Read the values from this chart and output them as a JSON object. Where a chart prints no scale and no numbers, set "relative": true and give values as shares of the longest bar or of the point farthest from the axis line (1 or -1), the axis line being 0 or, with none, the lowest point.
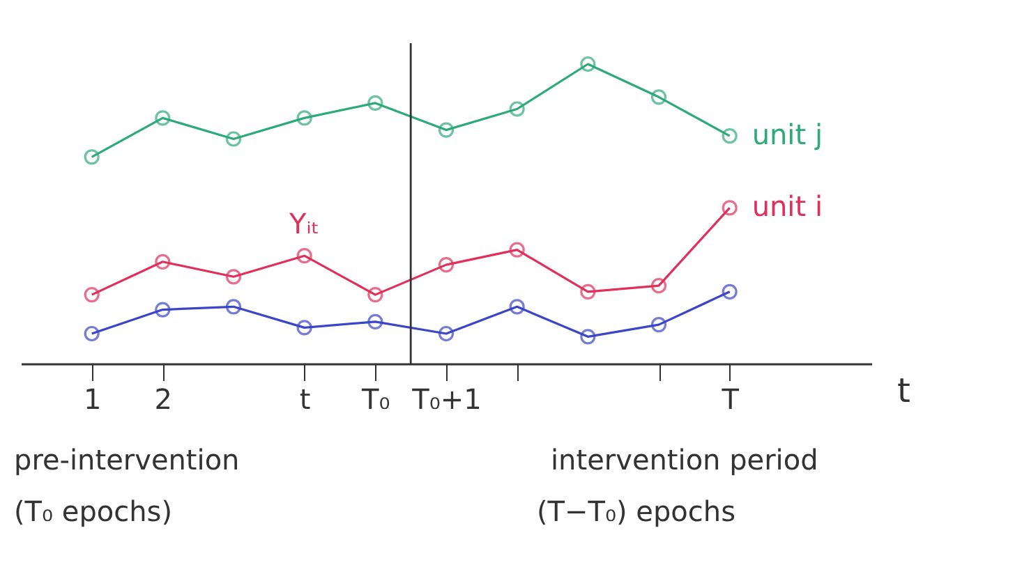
{
  "chart_data": {
    "type": "line",
    "relative": true,
    "xlabel": "t",
    "x": [
      1,
      2,
      3,
      4,
      5,
      6,
      7,
      8,
      9,
      10
    ],
    "xlim": [
      0,
      12
    ],
    "xticks": [
      1,
      2,
      {
        "value": 4,
        "label": "t"
      },
      {
        "value": 5,
        "label": "T₀"
      },
      {
        "value": 6,
        "label": "T₀+1"
      },
      {
        "value": 7,
        "label": null
      },
      {
        "value": 9,
        "label": null
      },
      {
        "value": 10,
        "label": "T"
      }
    ],
    "series": [
      {
        "name": "unit j",
        "color": "#2daa78",
        "values": [
          0.69,
          0.82,
          0.75,
          0.82,
          0.87,
          0.78,
          0.85,
          1.0,
          0.89,
          0.76
        ]
      },
      {
        "name": "unit i",
        "color": "#e0305a",
        "values": [
          0.23,
          0.34,
          0.29,
          0.36,
          0.23,
          0.33,
          0.38,
          0.24,
          0.26,
          0.52
        ]
      },
      {
        "color": "#3a45c8",
        "values": [
          0.1,
          0.18,
          0.19,
          0.12,
          0.14,
          0.1,
          0.19,
          0.09,
          0.13,
          0.24
        ]
      }
    ],
    "ref_lines": [
      {
        "axis": "x",
        "value": 5.5
      }
    ],
    "marker": "circle",
    "annotations": [
      {
        "text": "Yᵢₜ",
        "x": 4,
        "y": 0.36
      },
      "pre-intervention",
      "(T₀ epochs)",
      "intervention period",
      "(T−T₀) epochs"
    ]
  }
}
